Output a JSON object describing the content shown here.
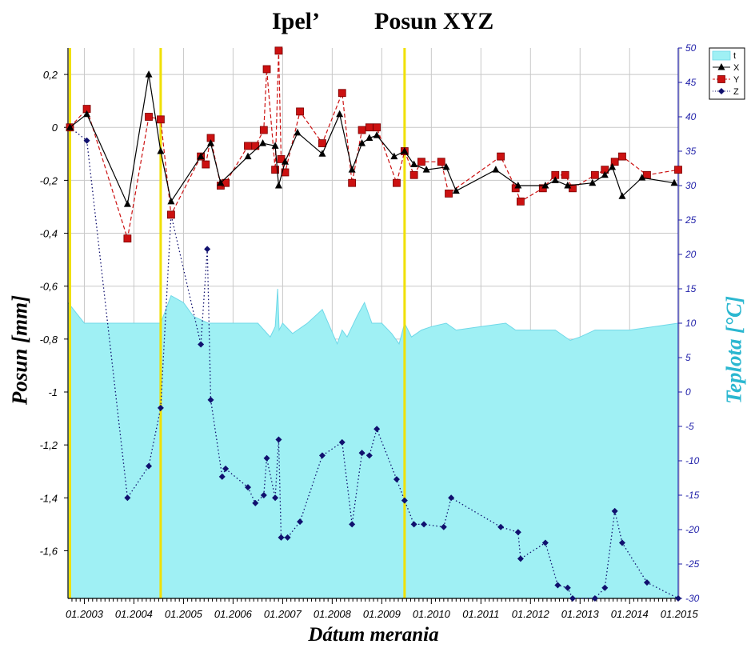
{
  "title": {
    "left": "Ipel’",
    "right": "Posun XYZ"
  },
  "colors": {
    "temperature_fill": "#9ff0f4",
    "temperature_stroke": "#6fd8e8",
    "x_series": "#000000",
    "y_series": "#cc1111",
    "z_series": "#10106e",
    "marker_lines": "#f0e000",
    "right_axis": "#2222aa",
    "right_axis_title": "#2bb7d0"
  },
  "chart_data": {
    "type": "line",
    "title": "Ipel’ Posun XYZ",
    "xlabel": "Dátum merania",
    "ylabel": "Posun [mm]",
    "y2label": "Teplota [°C]",
    "xlim": [
      2002.67,
      2014.98
    ],
    "ylim": [
      -1.78,
      0.3
    ],
    "y2lim": [
      -30,
      50
    ],
    "grid": true,
    "legend_position": "top-right",
    "x_ticks": [
      2003,
      2004,
      2005,
      2006,
      2007,
      2008,
      2009,
      2010,
      2011,
      2012,
      2013,
      2014,
      2015
    ],
    "x_tick_labels": [
      "01.2003",
      "01.2004",
      "01.2005",
      "01.2006",
      "01.2007",
      "01.2008",
      "01.2009",
      "01.2010",
      "01.2011",
      "01.2012",
      "01.2013",
      "01.2014",
      "01.2015"
    ],
    "y_ticks": [
      0.2,
      0,
      -0.2,
      -0.4,
      -0.6,
      -0.8,
      -1,
      -1.2,
      -1.4,
      -1.6
    ],
    "y_tick_labels": [
      "0,2",
      "0",
      "-0,2",
      "-0,4",
      "-0,6",
      "-0,8",
      "-1",
      "-1,2",
      "-1,4",
      "-1,6"
    ],
    "y2_ticks": [
      50,
      45,
      40,
      35,
      30,
      25,
      20,
      15,
      10,
      5,
      0,
      -5,
      -10,
      -15,
      -20,
      -25,
      -30
    ],
    "y2_tick_labels": [
      "50",
      "45",
      "40",
      "35",
      "30",
      "25",
      "20",
      "15",
      "10",
      "5",
      "0",
      "-5",
      "-10",
      "-15",
      "-20",
      "-25",
      "-30"
    ],
    "vertical_markers": [
      2002.71,
      2004.54,
      2009.46
    ],
    "series": [
      {
        "name": "t",
        "type": "area",
        "axis": "y2",
        "x": [
          2002.67,
          2003.0,
          2004.54,
          2004.75,
          2005.0,
          2005.2,
          2005.5,
          2006.0,
          2006.5,
          2006.75,
          2006.85,
          2006.9,
          2006.93,
          2007.0,
          2007.2,
          2007.5,
          2007.8,
          2008.1,
          2008.2,
          2008.3,
          2008.5,
          2008.65,
          2008.8,
          2009.0,
          2009.2,
          2009.35,
          2009.46,
          2009.6,
          2009.8,
          2010.0,
          2010.3,
          2010.5,
          2011.0,
          2011.5,
          2011.7,
          2012.0,
          2012.5,
          2012.8,
          2013.0,
          2013.3,
          2013.5,
          2014.0,
          2014.5,
          2014.98
        ],
        "values": [
          13,
          10,
          10,
          14,
          13,
          11,
          10,
          10,
          10,
          8,
          9.5,
          15,
          9,
          10,
          8.5,
          10,
          12,
          7,
          9,
          8,
          11,
          13,
          10,
          10,
          8.5,
          7,
          10,
          8,
          9,
          9.5,
          10,
          9,
          9.5,
          10,
          9,
          9,
          9,
          7.5,
          8,
          9,
          9,
          9,
          9.5,
          10
        ]
      },
      {
        "name": "X",
        "type": "line",
        "axis": "y",
        "x": [
          2002.71,
          2003.05,
          2003.87,
          2004.3,
          2004.54,
          2004.75,
          2005.35,
          2005.55,
          2005.75,
          2006.3,
          2006.6,
          2006.85,
          2006.92,
          2007.05,
          2007.3,
          2007.8,
          2008.15,
          2008.4,
          2008.6,
          2008.75,
          2008.9,
          2009.25,
          2009.46,
          2009.65,
          2009.9,
          2010.3,
          2010.5,
          2011.3,
          2011.75,
          2012.3,
          2012.5,
          2012.75,
          2013.25,
          2013.5,
          2013.65,
          2013.85,
          2014.25,
          2014.9
        ],
        "values": [
          0.0,
          0.05,
          -0.29,
          0.2,
          -0.09,
          -0.28,
          -0.11,
          -0.06,
          -0.21,
          -0.11,
          -0.06,
          -0.07,
          -0.22,
          -0.13,
          -0.02,
          -0.1,
          0.05,
          -0.16,
          -0.06,
          -0.04,
          -0.03,
          -0.11,
          -0.09,
          -0.14,
          -0.16,
          -0.15,
          -0.24,
          -0.16,
          -0.22,
          -0.22,
          -0.2,
          -0.22,
          -0.21,
          -0.18,
          -0.15,
          -0.26,
          -0.19,
          -0.21
        ]
      },
      {
        "name": "Y",
        "type": "line",
        "axis": "y",
        "x": [
          2002.71,
          2003.05,
          2003.87,
          2004.3,
          2004.54,
          2004.75,
          2005.35,
          2005.45,
          2005.55,
          2005.75,
          2005.85,
          2006.3,
          2006.45,
          2006.62,
          2006.68,
          2006.85,
          2006.92,
          2006.97,
          2007.05,
          2007.35,
          2007.8,
          2008.2,
          2008.4,
          2008.6,
          2008.75,
          2008.9,
          2009.3,
          2009.46,
          2009.65,
          2009.8,
          2010.2,
          2010.35,
          2011.4,
          2011.7,
          2011.8,
          2012.25,
          2012.5,
          2012.7,
          2012.85,
          2013.3,
          2013.5,
          2013.7,
          2013.85,
          2014.35,
          2014.98
        ],
        "values": [
          0.0,
          0.07,
          -0.42,
          0.04,
          0.03,
          -0.33,
          -0.11,
          -0.14,
          -0.04,
          -0.22,
          -0.21,
          -0.07,
          -0.07,
          -0.01,
          0.22,
          -0.16,
          0.29,
          -0.12,
          -0.17,
          0.06,
          -0.06,
          0.13,
          -0.21,
          -0.01,
          0.0,
          0.0,
          -0.21,
          -0.09,
          -0.18,
          -0.13,
          -0.13,
          -0.25,
          -0.11,
          -0.23,
          -0.28,
          -0.23,
          -0.18,
          -0.18,
          -0.23,
          -0.18,
          -0.16,
          -0.13,
          -0.11,
          -0.18,
          -0.16
        ]
      },
      {
        "name": "Z",
        "type": "line",
        "axis": "y",
        "x": [
          2002.71,
          2003.05,
          2003.87,
          2004.3,
          2004.54,
          2004.75,
          2005.35,
          2005.48,
          2005.55,
          2005.78,
          2005.85,
          2006.3,
          2006.45,
          2006.62,
          2006.68,
          2006.85,
          2006.92,
          2006.97,
          2007.1,
          2007.35,
          2007.8,
          2008.2,
          2008.4,
          2008.6,
          2008.75,
          2008.9,
          2009.3,
          2009.46,
          2009.65,
          2009.85,
          2010.25,
          2010.4,
          2011.4,
          2011.75,
          2011.8,
          2012.3,
          2012.55,
          2012.75,
          2012.85,
          2013.3,
          2013.5,
          2013.7,
          2013.85,
          2014.35,
          2014.98
        ],
        "values": [
          0.0,
          -0.05,
          -1.4,
          -1.28,
          -1.06,
          -0.33,
          -0.82,
          -0.46,
          -1.03,
          -1.32,
          -1.29,
          -1.36,
          -1.42,
          -1.39,
          -1.25,
          -1.4,
          -1.18,
          -1.55,
          -1.55,
          -1.49,
          -1.24,
          -1.19,
          -1.5,
          -1.23,
          -1.24,
          -1.14,
          -1.33,
          -1.41,
          -1.5,
          -1.5,
          -1.51,
          -1.4,
          -1.51,
          -1.53,
          -1.63,
          -1.57,
          -1.73,
          -1.74,
          -1.78,
          -1.78,
          -1.74,
          -1.45,
          -1.57,
          -1.72,
          -1.78
        ]
      }
    ]
  }
}
